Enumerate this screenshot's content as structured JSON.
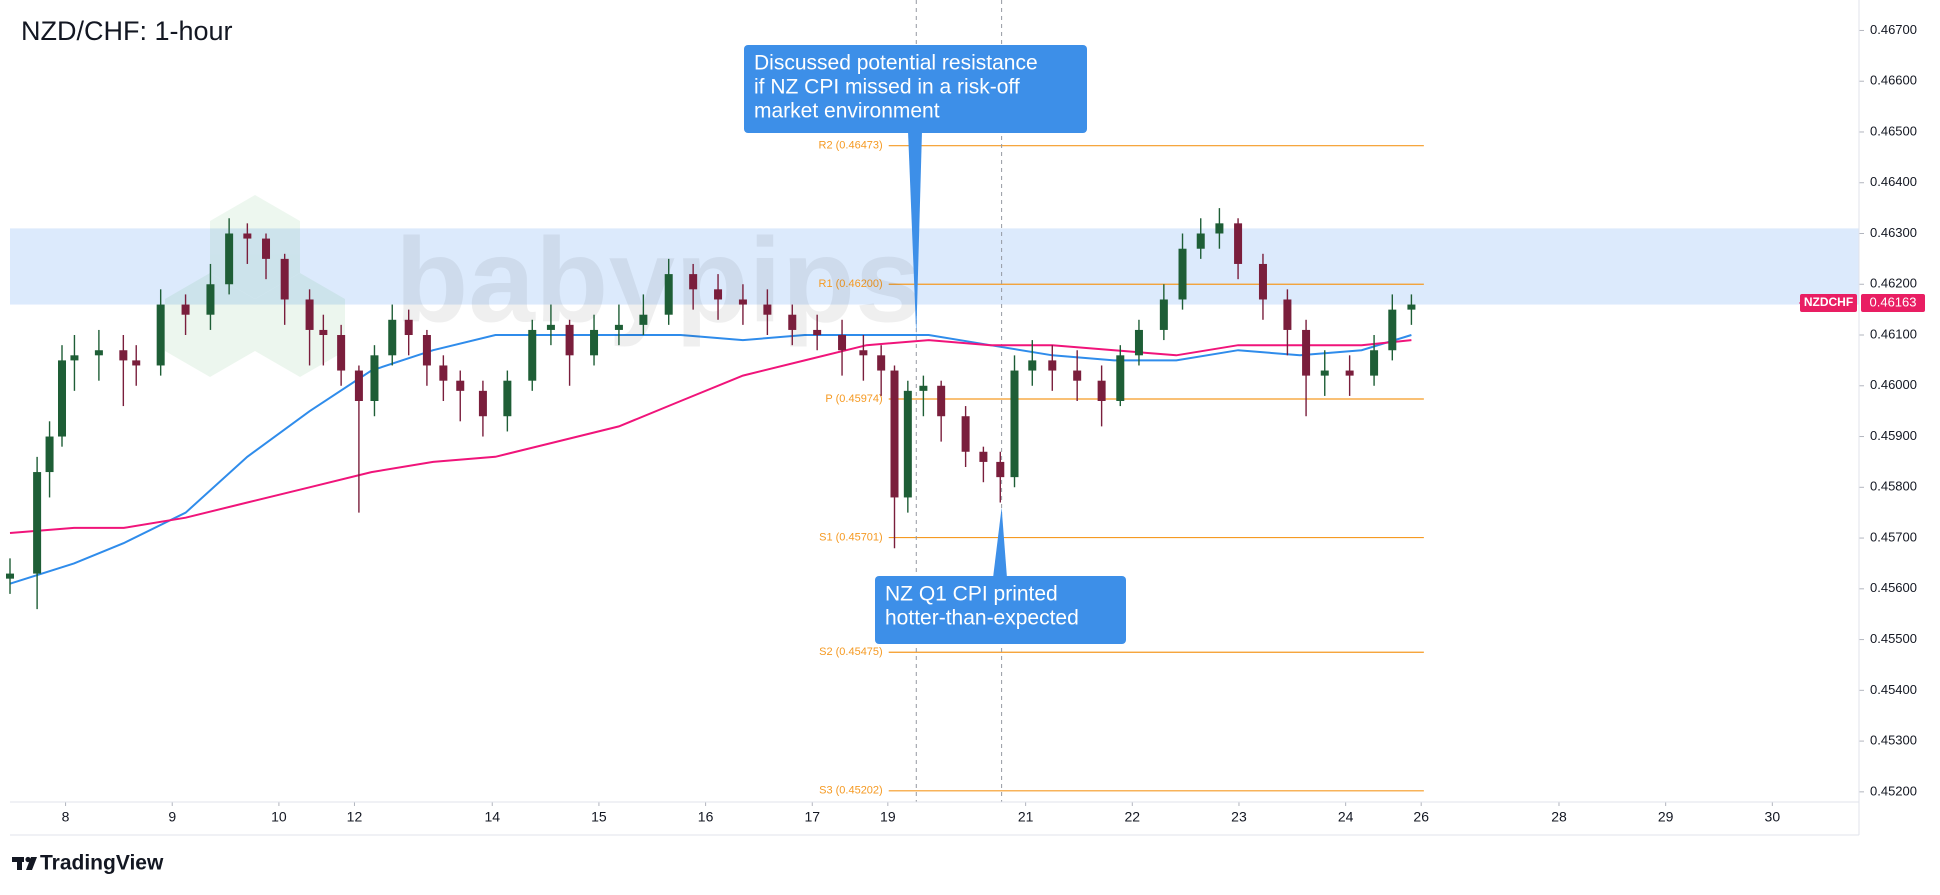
{
  "chart_data": {
    "type": "candlestick",
    "title": "NZD/CHF: 1-hour",
    "symbol": "NZDCHF",
    "last_price": {
      "value": 0.46163,
      "label": "0.46163"
    },
    "watermark": "babypips",
    "footer": "TradingView",
    "up_color": "#1e5e36",
    "down_color": "#7a1e3c",
    "x": [
      -12.5,
      -6.4,
      -3.6,
      -0.8,
      2,
      7.5,
      13,
      15.9,
      21.4,
      27,
      32.6,
      36.8,
      40.9,
      45.1,
      49.3,
      54.9,
      58,
      62,
      66,
      69.5,
      73.5,
      77.2,
      81.3,
      85,
      88.8,
      93.9,
      99.4,
      105,
      109.2,
      113.4,
      118.9,
      124.5,
      130,
      135.7,
      141.2,
      146.8,
      152.4,
      157.9,
      163.5,
      169.1,
      174.7,
      179.5,
      183.5,
      186.5,
      189.5,
      193,
      197,
      202.5,
      206.5,
      210.3,
      213.5,
      217.5,
      222,
      227.6,
      233.1,
      237.3,
      241.5,
      247.1,
      251.3,
      255.4,
      259.6,
      263.8,
      269.4,
      274.9,
      279.1,
      283.3,
      288.9,
      294.4,
      298.5,
      302.8
    ],
    "open": [
      0.4562,
      0.4563,
      0.4583,
      0.459,
      0.4605,
      0.4606,
      0.4607,
      0.4605,
      0.4604,
      0.4616,
      0.4614,
      0.462,
      0.463,
      0.4629,
      0.4625,
      0.4617,
      0.4611,
      0.461,
      0.4603,
      0.4597,
      0.4606,
      0.4613,
      0.461,
      0.4604,
      0.4601,
      0.4599,
      0.4594,
      0.4601,
      0.4611,
      0.4612,
      0.4606,
      0.4611,
      0.4612,
      0.4614,
      0.4622,
      0.4619,
      0.4617,
      0.4616,
      0.4614,
      0.4611,
      0.461,
      0.4607,
      0.4606,
      0.4603,
      0.4578,
      0.4599,
      0.46,
      0.4594,
      0.4587,
      0.4585,
      0.4582,
      0.4603,
      0.4605,
      0.4603,
      0.4601,
      0.4597,
      0.4606,
      0.4611,
      0.4617,
      0.4627,
      0.463,
      0.4632,
      0.4624,
      0.4617,
      0.4611,
      0.4602,
      0.4603,
      0.4602,
      0.4607,
      0.4615
    ],
    "high": [
      0.4566,
      0.4586,
      0.4593,
      0.4608,
      0.461,
      0.4611,
      0.461,
      0.4608,
      0.4619,
      0.4618,
      0.4624,
      0.4633,
      0.4632,
      0.463,
      0.4626,
      0.4619,
      0.4614,
      0.4612,
      0.4604,
      0.4608,
      0.4616,
      0.4615,
      0.4611,
      0.4606,
      0.4603,
      0.4601,
      0.4603,
      0.4613,
      0.4616,
      0.4613,
      0.4614,
      0.4616,
      0.4618,
      0.4625,
      0.4624,
      0.4622,
      0.462,
      0.4619,
      0.4616,
      0.4614,
      0.4613,
      0.461,
      0.4608,
      0.4604,
      0.4601,
      0.4602,
      0.4601,
      0.4596,
      0.4588,
      0.4587,
      0.4606,
      0.4609,
      0.4608,
      0.4607,
      0.4604,
      0.4608,
      0.4613,
      0.462,
      0.463,
      0.4633,
      0.4635,
      0.4633,
      0.4626,
      0.4619,
      0.4613,
      0.4607,
      0.4606,
      0.461,
      0.4618,
      0.4618
    ],
    "low": [
      0.4559,
      0.4556,
      0.4578,
      0.4588,
      0.4599,
      0.4601,
      0.4596,
      0.46,
      0.4602,
      0.461,
      0.4611,
      0.4618,
      0.4624,
      0.4621,
      0.4612,
      0.4604,
      0.4604,
      0.46,
      0.4575,
      0.4594,
      0.4604,
      0.4606,
      0.46,
      0.4597,
      0.4593,
      0.459,
      0.4591,
      0.4599,
      0.4608,
      0.46,
      0.4604,
      0.4608,
      0.461,
      0.4612,
      0.4615,
      0.4613,
      0.4612,
      0.461,
      0.4608,
      0.4607,
      0.4602,
      0.4601,
      0.4598,
      0.4568,
      0.4575,
      0.4594,
      0.4589,
      0.4584,
      0.4581,
      0.4577,
      0.458,
      0.46,
      0.4599,
      0.4597,
      0.4592,
      0.4596,
      0.4604,
      0.4609,
      0.4615,
      0.4625,
      0.4627,
      0.4621,
      0.4613,
      0.4606,
      0.4594,
      0.4598,
      0.4598,
      0.46,
      0.4605,
      0.4612
    ],
    "close": [
      0.4563,
      0.4583,
      0.459,
      0.4605,
      0.4606,
      0.4607,
      0.4605,
      0.4604,
      0.4616,
      0.4614,
      0.462,
      0.463,
      0.4629,
      0.4625,
      0.4617,
      0.4611,
      0.461,
      0.4603,
      0.4597,
      0.4606,
      0.4613,
      0.461,
      0.4604,
      0.4601,
      0.4599,
      0.4594,
      0.4601,
      0.4611,
      0.4612,
      0.4606,
      0.4611,
      0.4612,
      0.4614,
      0.4622,
      0.4619,
      0.4617,
      0.4616,
      0.4614,
      0.4611,
      0.461,
      0.4607,
      0.4606,
      0.4603,
      0.4578,
      0.4599,
      0.46,
      0.4594,
      0.4587,
      0.4585,
      0.4582,
      0.4603,
      0.4605,
      0.4603,
      0.4601,
      0.4597,
      0.4606,
      0.4611,
      0.4617,
      0.4627,
      0.463,
      0.4632,
      0.4624,
      0.4617,
      0.4611,
      0.4602,
      0.4603,
      0.4602,
      0.4607,
      0.4615,
      0.4616
    ],
    "moving_averages": [
      {
        "color": "#2f8ceb",
        "x": [
          -12.5,
          1.9,
          13.1,
          27,
          40.9,
          54.9,
          68.8,
          82.7,
          96.7,
          110.6,
          124.5,
          138.4,
          152.4,
          166.3,
          180.2,
          194.2,
          208.1,
          222,
          235.9,
          249.9,
          263.8,
          277.7,
          291.6,
          302.8
        ],
        "values": [
          0.4561,
          0.4565,
          0.4569,
          0.4575,
          0.4586,
          0.4595,
          0.4603,
          0.4607,
          0.461,
          0.461,
          0.461,
          0.461,
          0.4609,
          0.461,
          0.461,
          0.461,
          0.4608,
          0.4606,
          0.4605,
          0.4605,
          0.4607,
          0.4606,
          0.4607,
          0.461
        ]
      },
      {
        "color": "#f0147a",
        "x": [
          -12.5,
          1.9,
          13.1,
          27,
          40.9,
          54.9,
          68.8,
          82.7,
          96.7,
          110.6,
          124.5,
          138.4,
          152.4,
          166.3,
          180.2,
          194.2,
          208.1,
          222,
          235.9,
          249.9,
          263.8,
          277.7,
          291.6,
          302.8
        ],
        "values": [
          0.4571,
          0.4572,
          0.4572,
          0.4574,
          0.4577,
          0.458,
          0.4583,
          0.4585,
          0.4586,
          0.4589,
          0.4592,
          0.4597,
          0.4602,
          0.4605,
          0.4608,
          0.4609,
          0.4608,
          0.4608,
          0.4607,
          0.4606,
          0.4608,
          0.4608,
          0.4608,
          0.4609
        ]
      }
    ],
    "zone": [
      0.4616,
      0.4631
    ],
    "zone_color": "#d6e6fb",
    "pivot_color": "#f59a23",
    "pivot_range": [
      185.2,
      305.6
    ],
    "pivots": [
      {
        "label": "R2 (0.46473)",
        "value": 0.46473
      },
      {
        "label": "R1 (0.46200)",
        "value": 0.462
      },
      {
        "label": "P (0.45974)",
        "value": 0.45974
      },
      {
        "label": "S1 (0.45701)",
        "value": 0.45701
      },
      {
        "label": "S2 (0.45475)",
        "value": 0.45475
      },
      {
        "label": "S3 (0.45202)",
        "value": 0.45202
      }
    ],
    "annotations": [
      {
        "lines": [
          "Discussed potential resistance",
          "if NZ CPI missed in a risk-off",
          "market environment"
        ],
        "x": 191.4,
        "y": 0.461
      },
      {
        "lines": [
          "NZ Q1 CPI printed",
          "hotter-than-expected"
        ],
        "x": 210.6,
        "y": 0.4576
      }
    ],
    "annotation_color": "#3d8fe8",
    "xlim": [
      -12.5,
      403.5
    ],
    "ylim": [
      0.4518,
      0.4676
    ],
    "xticks": [
      {
        "value": 0,
        "label": "8"
      },
      {
        "value": 24,
        "label": "9"
      },
      {
        "value": 48,
        "label": "10"
      },
      {
        "value": 65,
        "label": "12"
      },
      {
        "value": 96,
        "label": "14"
      },
      {
        "value": 120,
        "label": "15"
      },
      {
        "value": 144,
        "label": "16"
      },
      {
        "value": 168,
        "label": "17"
      },
      {
        "value": 185,
        "label": "19"
      },
      {
        "value": 216,
        "label": "21"
      },
      {
        "value": 240,
        "label": "22"
      },
      {
        "value": 264,
        "label": "23"
      },
      {
        "value": 288,
        "label": "24"
      },
      {
        "value": 305,
        "label": "26"
      },
      {
        "value": 336,
        "label": "28"
      },
      {
        "value": 360,
        "label": "29"
      },
      {
        "value": 384,
        "label": "30"
      }
    ],
    "yticks": [
      {
        "value": 0.467,
        "label": "0.46700"
      },
      {
        "value": 0.466,
        "label": "0.46600"
      },
      {
        "value": 0.465,
        "label": "0.46500"
      },
      {
        "value": 0.464,
        "label": "0.46400"
      },
      {
        "value": 0.463,
        "label": "0.46300"
      },
      {
        "value": 0.462,
        "label": "0.46200"
      },
      {
        "value": 0.461,
        "label": "0.46100"
      },
      {
        "value": 0.46,
        "label": "0.46000"
      },
      {
        "value": 0.459,
        "label": "0.45900"
      },
      {
        "value": 0.458,
        "label": "0.45800"
      },
      {
        "value": 0.457,
        "label": "0.45700"
      },
      {
        "value": 0.456,
        "label": "0.45600"
      },
      {
        "value": 0.455,
        "label": "0.45500"
      },
      {
        "value": 0.454,
        "label": "0.45400"
      },
      {
        "value": 0.453,
        "label": "0.45300"
      },
      {
        "value": 0.452,
        "label": "0.45200"
      }
    ]
  }
}
